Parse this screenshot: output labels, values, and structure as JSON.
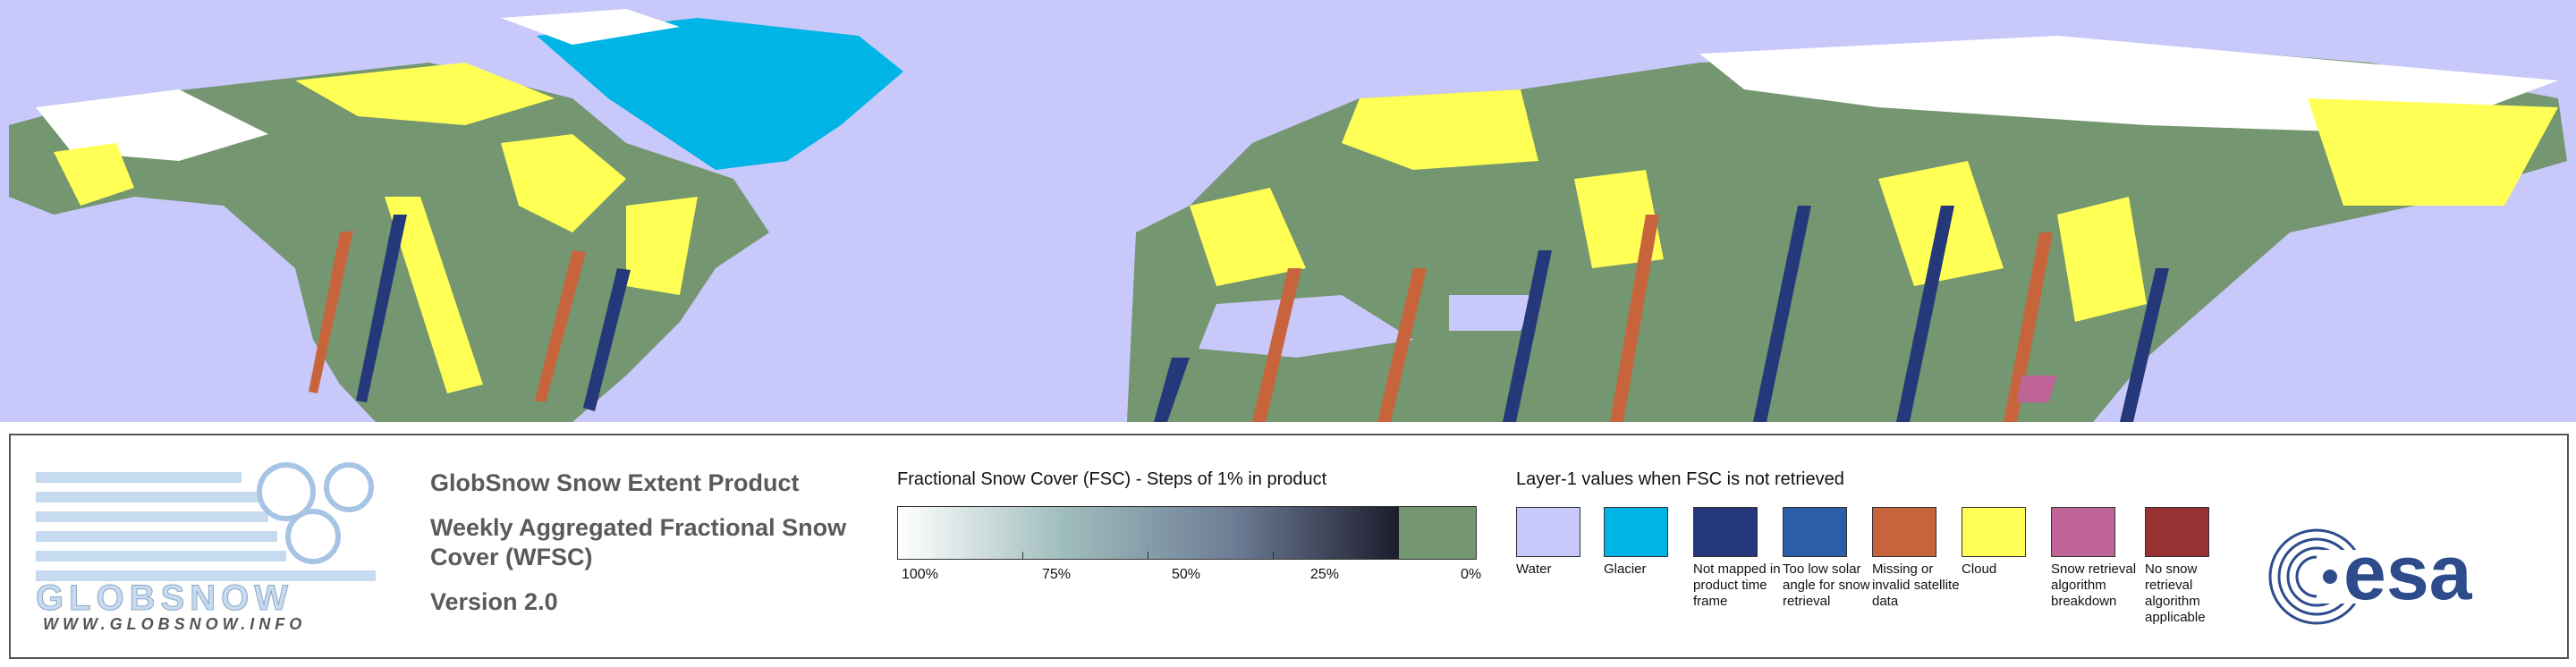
{
  "header": {
    "product": "GlobSnow Snow Extent Product",
    "subtitle": "Weekly Aggregated Fractional Snow Cover (WFSC)",
    "version": "Version 2.0",
    "logo_text": "GLOBSNOW",
    "website": "WWW.GLOBSNOW.INFO",
    "agency": "esa"
  },
  "fsc_legend": {
    "title": "Fractional Snow Cover (FSC) - Steps of 1% in product",
    "ticks": [
      "100%",
      "75%",
      "50%",
      "25%",
      "0%"
    ],
    "bar_colors": [
      "#ffffff",
      "#9fbcbc",
      "#6e7e96",
      "#1c1c2c"
    ],
    "zero_color": "#749670"
  },
  "layer1_legend": {
    "title": "Layer-1 values when FSC is not retrieved",
    "classes": [
      {
        "label": "Water",
        "color": "#c8c8fa"
      },
      {
        "label": "Glacier",
        "color": "#00b4e6"
      },
      {
        "label": "Not mapped in product time frame",
        "color": "#24387a"
      },
      {
        "label": "Too low solar angle for snow retrieval",
        "color": "#2c5ea8"
      },
      {
        "label": "Missing or invalid satellite data",
        "color": "#c8643c"
      },
      {
        "label": "Cloud",
        "color": "#ffff55"
      },
      {
        "label": "Snow retrieval algorithm breakdown",
        "color": "#be6496"
      },
      {
        "label": "No snow retrieval algorithm applicable",
        "color": "#963232"
      }
    ]
  }
}
